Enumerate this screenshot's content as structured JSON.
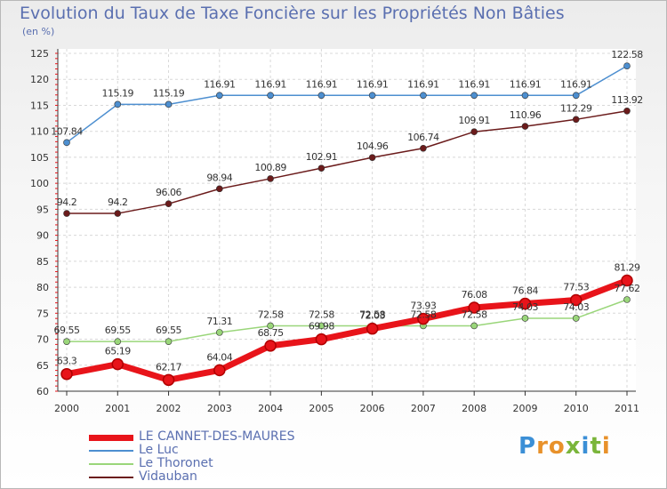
{
  "title": "Evolution du Taux de Taxe Foncière sur les Propriétés Non Bâties",
  "subtitle": "(en %)",
  "logo": {
    "text": "Proxiti",
    "colors": [
      "#3b8fd6",
      "#e8912a",
      "#e8912a",
      "#7ab53a",
      "#3b8fd6",
      "#7ab53a",
      "#e8912a"
    ]
  },
  "chart_data": {
    "type": "line",
    "title": "Evolution du Taux de Taxe Foncière sur les Propriétés Non Bâties",
    "ylabel": "(en %)",
    "xlabel": "",
    "x": [
      "2000",
      "2001",
      "2002",
      "2003",
      "2004",
      "2005",
      "2006",
      "2007",
      "2008",
      "2009",
      "2010",
      "2011"
    ],
    "ylim": [
      60,
      125
    ],
    "yticks": [
      60,
      65,
      70,
      75,
      80,
      85,
      90,
      95,
      100,
      105,
      110,
      115,
      120,
      125
    ],
    "grid": true,
    "legend_placement": "bottom-left",
    "series": [
      {
        "name": "LE CANNET-DES-MAURES",
        "color": "#e8141a",
        "emphasis": true,
        "values": [
          63.3,
          65.19,
          62.17,
          64.04,
          68.75,
          69.98,
          72.03,
          73.93,
          76.08,
          76.84,
          77.53,
          81.29
        ],
        "labels": [
          "63.3",
          "65.19",
          "62.17",
          "64.04",
          "68.75",
          "69.98",
          "72.03",
          "73.93",
          "76.08",
          "76.84",
          "77.53",
          "81.29"
        ]
      },
      {
        "name": "Le Luc",
        "color": "#4d8fd0",
        "values": [
          107.84,
          115.19,
          115.19,
          116.91,
          116.91,
          116.91,
          116.91,
          116.91,
          116.91,
          116.91,
          116.91,
          122.58
        ],
        "labels": [
          "107.84",
          "115.19",
          "115.19",
          "116.91",
          "116.91",
          "116.91",
          "116.91",
          "116.91",
          "116.91",
          "116.91",
          "116.91",
          "122.58"
        ]
      },
      {
        "name": "Le Thoronet",
        "color": "#9ad67a",
        "values": [
          69.55,
          69.55,
          69.55,
          71.31,
          72.58,
          72.58,
          72.58,
          72.58,
          72.58,
          74.03,
          74.03,
          77.62
        ],
        "labels": [
          "69.55",
          "69.55",
          "69.55",
          "71.31",
          "72.58",
          "72.58",
          "72.58",
          "72.58",
          "72.58",
          "74.03",
          "74.03",
          "77.62"
        ]
      },
      {
        "name": "Vidauban",
        "color": "#6b1b1b",
        "values": [
          94.2,
          94.2,
          96.06,
          98.94,
          100.89,
          102.91,
          104.96,
          106.74,
          109.91,
          110.96,
          112.29,
          113.92
        ],
        "labels": [
          "94.2",
          "94.2",
          "96.06",
          "98.94",
          "100.89",
          "102.91",
          "104.96",
          "106.74",
          "109.91",
          "110.96",
          "112.29",
          "113.92"
        ]
      }
    ]
  }
}
